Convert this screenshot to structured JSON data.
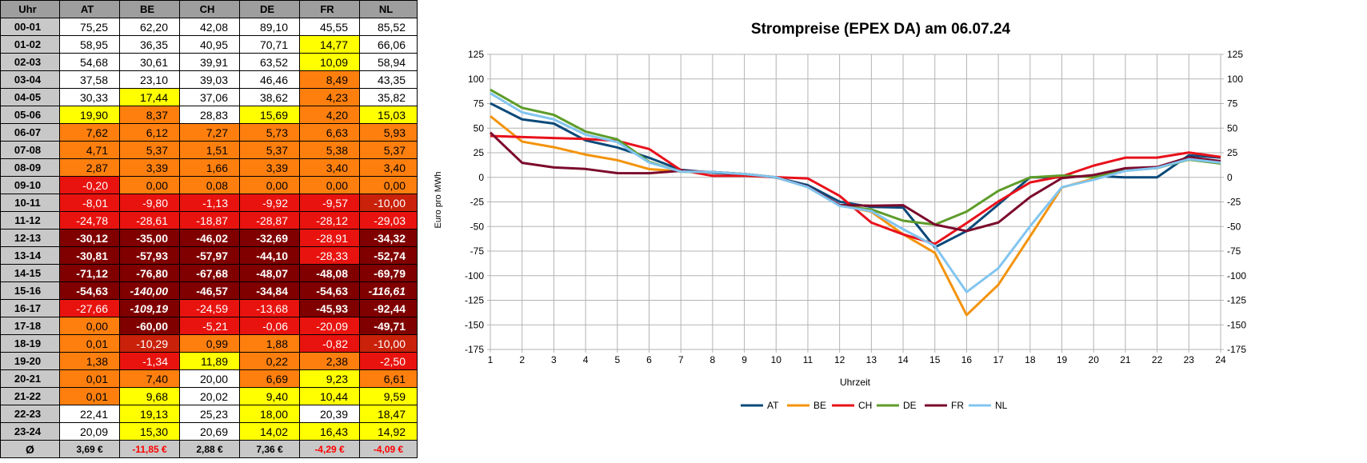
{
  "table": {
    "header": [
      "Uhr",
      "AT",
      "BE",
      "CH",
      "DE",
      "FR",
      "NL"
    ],
    "rows": [
      {
        "hour": "00-01",
        "values": [
          "75,25",
          "62,20",
          "42,08",
          "89,10",
          "45,55",
          "85,52"
        ]
      },
      {
        "hour": "01-02",
        "values": [
          "58,95",
          "36,35",
          "40,95",
          "70,71",
          "14,77",
          "66,06"
        ]
      },
      {
        "hour": "02-03",
        "values": [
          "54,68",
          "30,61",
          "39,91",
          "63,52",
          "10,09",
          "58,94"
        ]
      },
      {
        "hour": "03-04",
        "values": [
          "37,58",
          "23,10",
          "39,03",
          "46,46",
          "8,49",
          "43,35"
        ]
      },
      {
        "hour": "04-05",
        "values": [
          "30,33",
          "17,44",
          "37,06",
          "38,62",
          "4,23",
          "35,82"
        ]
      },
      {
        "hour": "05-06",
        "values": [
          "19,90",
          "8,37",
          "28,83",
          "15,69",
          "4,20",
          "15,03"
        ]
      },
      {
        "hour": "06-07",
        "values": [
          "7,62",
          "6,12",
          "7,27",
          "5,73",
          "6,63",
          "5,93"
        ]
      },
      {
        "hour": "07-08",
        "values": [
          "4,71",
          "5,37",
          "1,51",
          "5,37",
          "5,38",
          "5,37"
        ]
      },
      {
        "hour": "08-09",
        "values": [
          "2,87",
          "3,39",
          "1,66",
          "3,39",
          "3,40",
          "3,40"
        ]
      },
      {
        "hour": "09-10",
        "values": [
          "-0,20",
          "0,00",
          "0,08",
          "0,00",
          "0,00",
          "0,00"
        ]
      },
      {
        "hour": "10-11",
        "values": [
          "-8,01",
          "-9,80",
          "-1,13",
          "-9,92",
          "-9,57",
          "-10,00"
        ]
      },
      {
        "hour": "11-12",
        "values": [
          "-24,78",
          "-28,61",
          "-18,87",
          "-28,87",
          "-28,12",
          "-29,03"
        ]
      },
      {
        "hour": "12-13",
        "values": [
          "-30,12",
          "-35,00",
          "-46,02",
          "-32,69",
          "-28,91",
          "-34,32"
        ]
      },
      {
        "hour": "13-14",
        "values": [
          "-30,81",
          "-57,93",
          "-57,97",
          "-44,10",
          "-28,33",
          "-52,74"
        ]
      },
      {
        "hour": "14-15",
        "values": [
          "-71,12",
          "-76,80",
          "-67,68",
          "-48,07",
          "-48,08",
          "-69,79"
        ]
      },
      {
        "hour": "15-16",
        "values": [
          "-54,63",
          "-140,00",
          "-46,57",
          "-34,84",
          "-54,63",
          "-116,61"
        ]
      },
      {
        "hour": "16-17",
        "values": [
          "-27,66",
          "-109,19",
          "-24,59",
          "-13,68",
          "-45,93",
          "-92,44"
        ]
      },
      {
        "hour": "17-18",
        "values": [
          "0,00",
          "-60,00",
          "-5,21",
          "-0,06",
          "-20,09",
          "-49,71"
        ]
      },
      {
        "hour": "18-19",
        "values": [
          "0,01",
          "-10,29",
          "0,99",
          "1,88",
          "-0,82",
          "-10,00"
        ]
      },
      {
        "hour": "19-20",
        "values": [
          "1,38",
          "-1,34",
          "11,89",
          "0,22",
          "2,38",
          "-2,50"
        ]
      },
      {
        "hour": "20-21",
        "values": [
          "0,01",
          "7,40",
          "20,00",
          "6,69",
          "9,23",
          "6,61"
        ]
      },
      {
        "hour": "21-22",
        "values": [
          "0,01",
          "9,68",
          "20,02",
          "9,40",
          "10,44",
          "9,59"
        ]
      },
      {
        "hour": "22-23",
        "values": [
          "22,41",
          "19,13",
          "25,23",
          "18,00",
          "20,39",
          "18,47"
        ]
      },
      {
        "hour": "23-24",
        "values": [
          "20,09",
          "15,30",
          "20,69",
          "14,02",
          "16,43",
          "14,92"
        ]
      }
    ],
    "avg_row": {
      "label": "Ø",
      "values": [
        "3,69 €",
        "-11,85 €",
        "2,88 €",
        "7,36 €",
        "-4,29 €",
        "-4,09 €"
      ]
    },
    "colors": {
      "white": "#ffffff",
      "yellow": "#ffff00",
      "orange": "#ff7f0e",
      "red": "#e8130f",
      "darkorange_red": "#c9210a",
      "darkred": "#800000",
      "header_gray": "#9e9e9e",
      "hour_gray": "#c8c8c8",
      "neg_text": "#ff0000"
    }
  },
  "chart_data": {
    "type": "line",
    "title": "Strompreise (EPEX DA) am 06.07.24",
    "xlabel": "Uhrzeit",
    "ylabel": "Euro pro MWh",
    "x": [
      1,
      2,
      3,
      4,
      5,
      6,
      7,
      8,
      9,
      10,
      11,
      12,
      13,
      14,
      15,
      16,
      17,
      18,
      19,
      20,
      21,
      22,
      23,
      24
    ],
    "ylim": [
      -175,
      125
    ],
    "yticks": [
      125,
      100,
      75,
      50,
      25,
      0,
      -25,
      -50,
      -75,
      -100,
      -125,
      -150,
      -175
    ],
    "grid": true,
    "legend_position": "bottom",
    "series": [
      {
        "name": "AT",
        "color": "#0b4a7a",
        "values": [
          75.25,
          58.95,
          54.68,
          37.58,
          30.33,
          19.9,
          7.62,
          4.71,
          2.87,
          -0.2,
          -8.01,
          -24.78,
          -30.12,
          -30.81,
          -71.12,
          -54.63,
          -27.66,
          0.0,
          0.01,
          1.38,
          0.01,
          0.01,
          22.41,
          20.09
        ]
      },
      {
        "name": "BE",
        "color": "#f3930c",
        "values": [
          62.2,
          36.35,
          30.61,
          23.1,
          17.44,
          8.37,
          6.12,
          5.37,
          3.39,
          0.0,
          -9.8,
          -28.61,
          -35.0,
          -57.93,
          -76.8,
          -140.0,
          -109.19,
          -60.0,
          -10.29,
          -1.34,
          7.4,
          9.68,
          19.13,
          15.3
        ]
      },
      {
        "name": "CH",
        "color": "#e8111b",
        "values": [
          42.08,
          40.95,
          39.91,
          39.03,
          37.06,
          28.83,
          7.27,
          1.51,
          1.66,
          0.08,
          -1.13,
          -18.87,
          -46.02,
          -57.97,
          -67.68,
          -46.57,
          -24.59,
          -5.21,
          0.99,
          11.89,
          20.0,
          20.02,
          25.23,
          20.69
        ]
      },
      {
        "name": "DE",
        "color": "#5e9c2a",
        "values": [
          89.1,
          70.71,
          63.52,
          46.46,
          38.62,
          15.69,
          5.73,
          5.37,
          3.39,
          0.0,
          -9.92,
          -28.87,
          -32.69,
          -44.1,
          -48.07,
          -34.84,
          -13.68,
          -0.06,
          1.88,
          0.22,
          6.69,
          9.4,
          18.0,
          14.02
        ]
      },
      {
        "name": "FR",
        "color": "#7b0a2c",
        "values": [
          45.55,
          14.77,
          10.09,
          8.49,
          4.23,
          4.2,
          6.63,
          5.38,
          3.4,
          0.0,
          -9.57,
          -28.12,
          -28.91,
          -28.33,
          -48.08,
          -54.63,
          -45.93,
          -20.09,
          -0.82,
          2.38,
          9.23,
          10.44,
          20.39,
          16.43
        ]
      },
      {
        "name": "NL",
        "color": "#82c5f0",
        "values": [
          85.52,
          66.06,
          58.94,
          43.35,
          35.82,
          15.03,
          5.93,
          5.37,
          3.4,
          0.0,
          -10.0,
          -29.03,
          -34.32,
          -52.74,
          -69.79,
          -116.61,
          -92.44,
          -49.71,
          -10.0,
          -2.5,
          6.61,
          9.59,
          18.47,
          14.92
        ]
      }
    ]
  }
}
